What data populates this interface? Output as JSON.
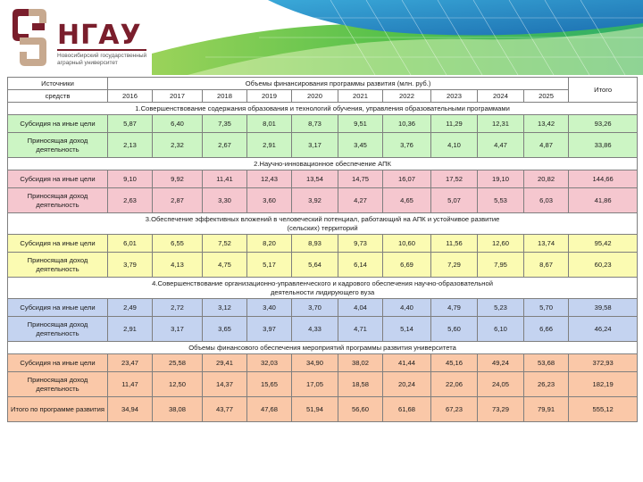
{
  "logo": {
    "icon": "university-crest-icon",
    "title": "НГАУ",
    "subtitle": "Новосибирский государственный аграрный университет"
  },
  "table": {
    "header": {
      "sources_label": "Источники",
      "funds_label": "средств",
      "volumes_label": "Объемы финансирования программы развития (млн. руб.)",
      "total_label": "Итого",
      "years": [
        "2016",
        "2017",
        "2018",
        "2019",
        "2020",
        "2021",
        "2022",
        "2023",
        "2024",
        "2025"
      ]
    },
    "sections": [
      {
        "title": "1.Совершенствование содержания образования и технологий обучения, управления образовательными программами",
        "color": "#ccf5c4",
        "rows": [
          {
            "label": "Субсидия на иные цели",
            "values": [
              "5,87",
              "6,40",
              "7,35",
              "8,01",
              "8,73",
              "9,51",
              "10,36",
              "11,29",
              "12,31",
              "13,42"
            ],
            "total": "93,26"
          },
          {
            "label": "Приносящая доход деятельность",
            "values": [
              "2,13",
              "2,32",
              "2,67",
              "2,91",
              "3,17",
              "3,45",
              "3,76",
              "4,10",
              "4,47",
              "4,87"
            ],
            "total": "33,86"
          }
        ]
      },
      {
        "title": "2.Научно-инновационное обеспечение АПК",
        "color": "#f5c7cf",
        "rows": [
          {
            "label": "Субсидия на иные цели",
            "values": [
              "9,10",
              "9,92",
              "11,41",
              "12,43",
              "13,54",
              "14,75",
              "16,07",
              "17,52",
              "19,10",
              "20,82"
            ],
            "total": "144,66"
          },
          {
            "label": "Приносящая доход деятельность",
            "values": [
              "2,63",
              "2,87",
              "3,30",
              "3,60",
              "3,92",
              "4,27",
              "4,65",
              "5,07",
              "5,53",
              "6,03"
            ],
            "total": "41,86"
          }
        ]
      },
      {
        "title": "3.Обеспечение эффективных вложений в человеческий потенциал, работающий на АПК и устойчивое развитие (сельских) территорий",
        "color": "#fbfbb2",
        "rows": [
          {
            "label": "Субсидия на иные цели",
            "values": [
              "6,01",
              "6,55",
              "7,52",
              "8,20",
              "8,93",
              "9,73",
              "10,60",
              "11,56",
              "12,60",
              "13,74"
            ],
            "total": "95,42"
          },
          {
            "label": "Приносящая доход деятельность",
            "values": [
              "3,79",
              "4,13",
              "4,75",
              "5,17",
              "5,64",
              "6,14",
              "6,69",
              "7,29",
              "7,95",
              "8,67"
            ],
            "total": "60,23"
          }
        ]
      },
      {
        "title": "4.Совершенствование организационно-управленческого и кадрового обеспечения научно-образовательной деятельности лидирующего вуза",
        "color": "#c4d3f0",
        "rows": [
          {
            "label": "Субсидия на иные цели",
            "values": [
              "2,49",
              "2,72",
              "3,12",
              "3,40",
              "3,70",
              "4,04",
              "4,40",
              "4,79",
              "5,23",
              "5,70"
            ],
            "total": "39,58"
          },
          {
            "label": "Приносящая доход деятельность",
            "values": [
              "2,91",
              "3,17",
              "3,65",
              "3,97",
              "4,33",
              "4,71",
              "5,14",
              "5,60",
              "6,10",
              "6,66"
            ],
            "total": "46,24"
          }
        ]
      },
      {
        "title": "Объемы финансового обеспечения мероприятий программы развития университета",
        "color": "#fac8a8",
        "rows": [
          {
            "label": "Субсидия на иные цели",
            "values": [
              "23,47",
              "25,58",
              "29,41",
              "32,03",
              "34,90",
              "38,02",
              "41,44",
              "45,16",
              "49,24",
              "53,68"
            ],
            "total": "372,93"
          },
          {
            "label": "Приносящая доход деятельность",
            "values": [
              "11,47",
              "12,50",
              "14,37",
              "15,65",
              "17,05",
              "18,58",
              "20,24",
              "22,06",
              "24,05",
              "26,23"
            ],
            "total": "182,19"
          },
          {
            "label": "Итого по программе развития",
            "values": [
              "34,94",
              "38,08",
              "43,77",
              "47,68",
              "51,94",
              "56,60",
              "61,68",
              "67,23",
              "73,29",
              "79,91"
            ],
            "total": "555,12"
          }
        ]
      }
    ]
  }
}
